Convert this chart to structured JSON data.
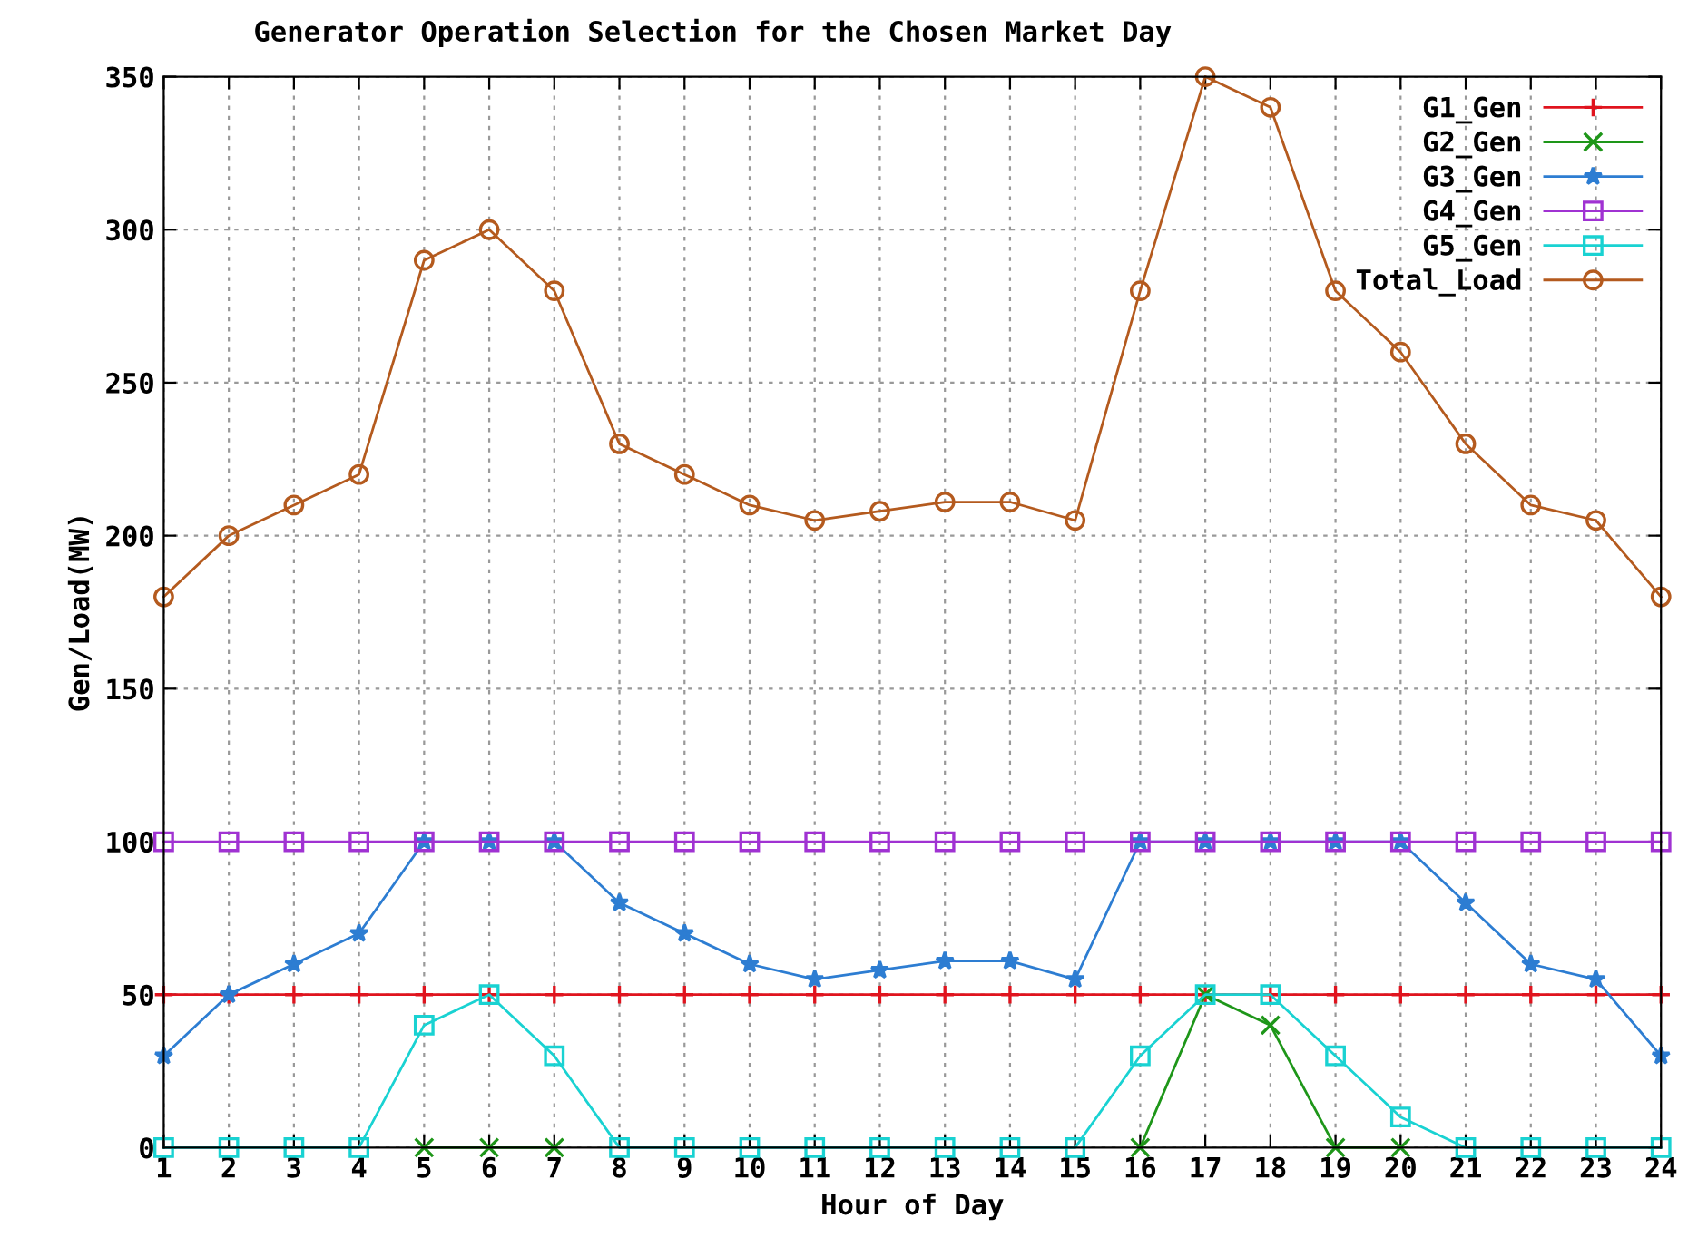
{
  "chart_data": {
    "type": "line",
    "title": "Generator Operation Selection for the Chosen Market Day",
    "xlabel": "Hour of Day",
    "ylabel": "Gen/Load(MW)",
    "x": [
      1,
      2,
      3,
      4,
      5,
      6,
      7,
      8,
      9,
      10,
      11,
      12,
      13,
      14,
      15,
      16,
      17,
      18,
      19,
      20,
      21,
      22,
      23,
      24
    ],
    "series": [
      {
        "name": "G1_Gen",
        "color": "#e0141e",
        "marker": "plus",
        "values": [
          50,
          50,
          50,
          50,
          50,
          50,
          50,
          50,
          50,
          50,
          50,
          50,
          50,
          50,
          50,
          50,
          50,
          50,
          50,
          50,
          50,
          50,
          50,
          50
        ]
      },
      {
        "name": "G2_Gen",
        "color": "#1e9619",
        "marker": "cross",
        "values": [
          null,
          null,
          null,
          null,
          0,
          0,
          0,
          null,
          null,
          null,
          null,
          null,
          null,
          null,
          null,
          0,
          50,
          40,
          0,
          0,
          null,
          null,
          null,
          null
        ]
      },
      {
        "name": "G3_Gen",
        "color": "#2d7dd2",
        "marker": "star",
        "values": [
          30,
          50,
          60,
          70,
          100,
          100,
          100,
          80,
          70,
          60,
          55,
          58,
          61,
          61,
          55,
          100,
          100,
          100,
          100,
          100,
          80,
          60,
          55,
          30
        ]
      },
      {
        "name": "G4_Gen",
        "color": "#a032d2",
        "marker": "square",
        "values": [
          100,
          100,
          100,
          100,
          100,
          100,
          100,
          100,
          100,
          100,
          100,
          100,
          100,
          100,
          100,
          100,
          100,
          100,
          100,
          100,
          100,
          100,
          100,
          100
        ]
      },
      {
        "name": "G5_Gen",
        "color": "#19d2d2",
        "marker": "square",
        "values": [
          0,
          0,
          0,
          0,
          40,
          50,
          30,
          0,
          0,
          0,
          0,
          0,
          0,
          0,
          0,
          30,
          50,
          50,
          30,
          10,
          0,
          0,
          0,
          0
        ]
      },
      {
        "name": "Total_Load",
        "color": "#b45a1e",
        "marker": "circle",
        "values": [
          180,
          200,
          210,
          220,
          290,
          300,
          280,
          230,
          220,
          210,
          205,
          208,
          211,
          211,
          205,
          280,
          350,
          340,
          280,
          260,
          230,
          210,
          205,
          180
        ]
      }
    ],
    "xlim": [
      1,
      24
    ],
    "xticks": [
      1,
      2,
      3,
      4,
      5,
      6,
      7,
      8,
      9,
      10,
      11,
      12,
      13,
      14,
      15,
      16,
      17,
      18,
      19,
      20,
      21,
      22,
      23,
      24
    ],
    "ylim": [
      0,
      350
    ],
    "yticks": [
      0,
      50,
      100,
      150,
      200,
      250,
      300,
      350
    ],
    "grid": true,
    "legend": "top right",
    "line_style": "solid"
  }
}
